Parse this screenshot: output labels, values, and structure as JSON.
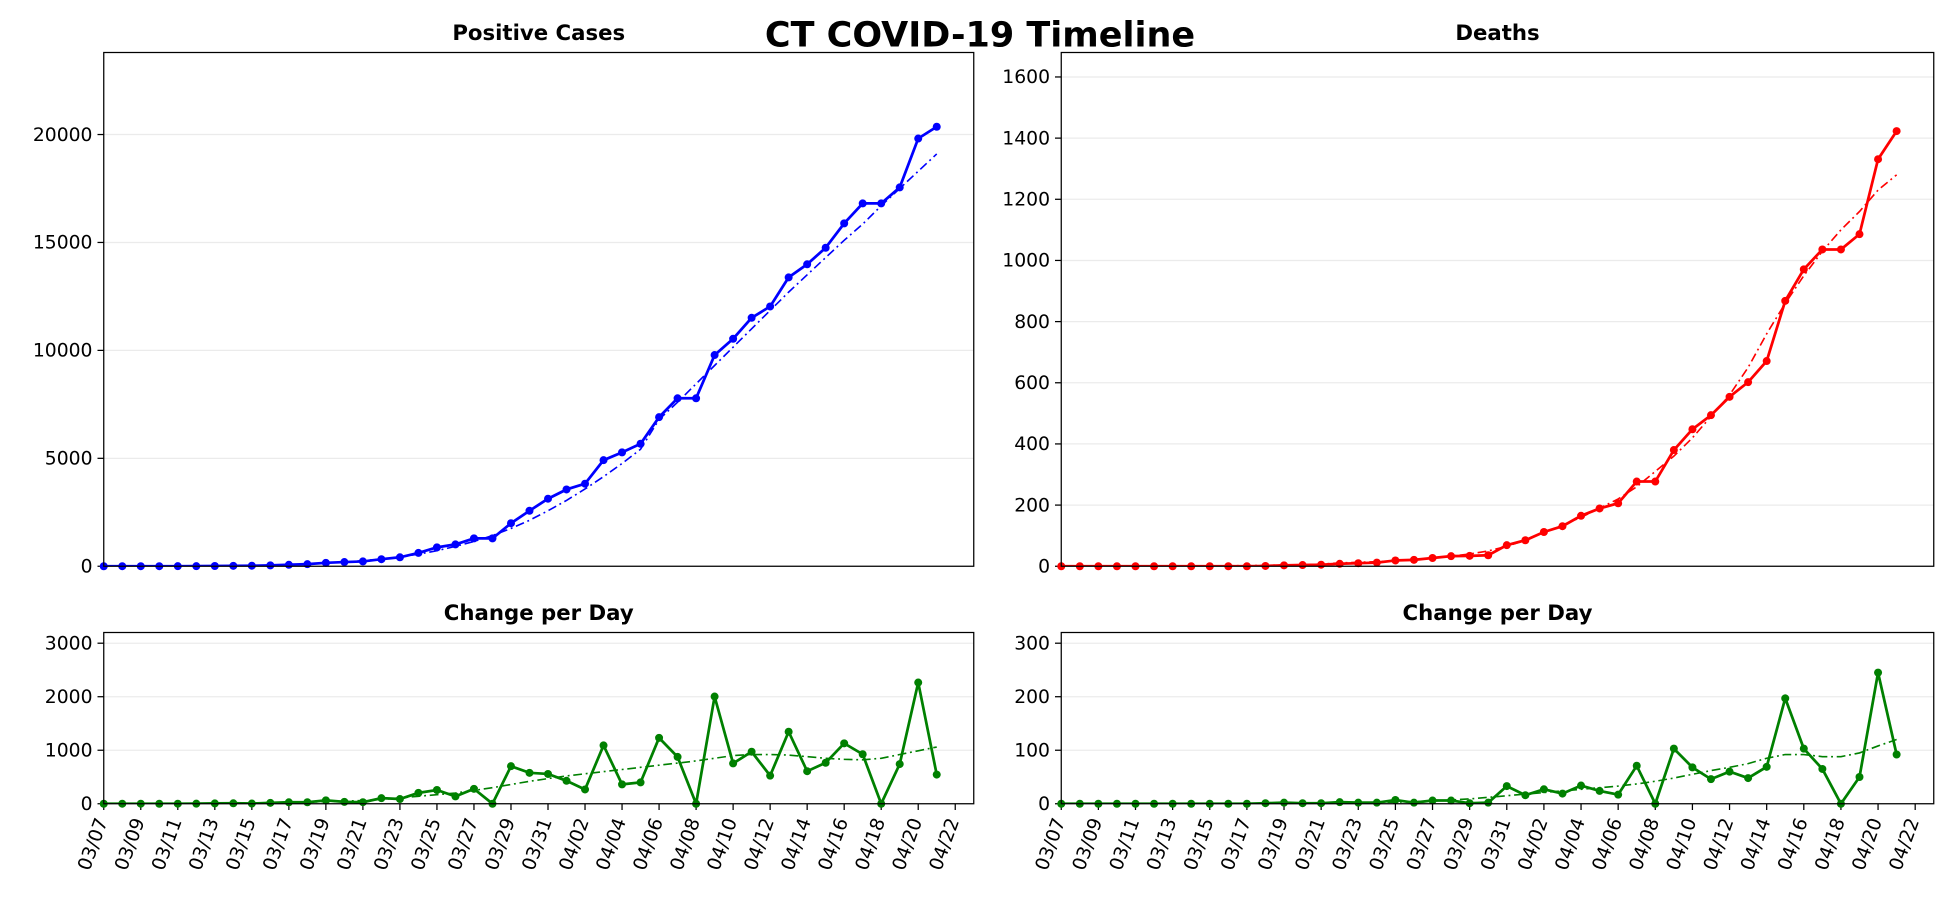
{
  "title": "CT COVID-19 Timeline",
  "chart_data": [
    {
      "type": "line",
      "title": "Positive Cases",
      "x": [
        "03/07",
        "03/08",
        "03/09",
        "03/10",
        "03/11",
        "03/12",
        "03/13",
        "03/14",
        "03/15",
        "03/16",
        "03/17",
        "03/18",
        "03/19",
        "03/20",
        "03/21",
        "03/22",
        "03/23",
        "03/24",
        "03/25",
        "03/26",
        "03/27",
        "03/28",
        "03/29",
        "03/30",
        "03/31",
        "04/01",
        "04/02",
        "04/03",
        "04/04",
        "04/05",
        "04/06",
        "04/07",
        "04/08",
        "04/09",
        "04/10",
        "04/11",
        "04/12",
        "04/13",
        "04/14",
        "04/15",
        "04/16",
        "04/17",
        "04/18",
        "04/19",
        "04/20",
        "04/21"
      ],
      "xlim": [
        "03/07",
        "04/23"
      ],
      "ylim": [
        0,
        23800
      ],
      "yticks": [
        0,
        5000,
        10000,
        15000,
        20000
      ],
      "grid": true,
      "series": [
        {
          "color": "#0000ff",
          "style": "solid-marker",
          "values": [
            0,
            1,
            2,
            2,
            3,
            5,
            11,
            20,
            24,
            41,
            68,
            96,
            159,
            194,
            223,
            327,
            415,
            618,
            875,
            1012,
            1291,
            1291,
            1993,
            2571,
            3128,
            3557,
            3824,
            4914,
            5276,
            5675,
            6906,
            7781,
            7781,
            9784,
            10538,
            11510,
            12035,
            13381,
            13989,
            14755,
            15884,
            16809,
            16809,
            17550,
            19815,
            20360
          ]
        },
        {
          "color": "#0000ff",
          "style": "dashdot",
          "values": [
            0,
            0,
            0,
            0,
            0,
            0,
            0,
            0,
            10,
            30,
            60,
            100,
            150,
            200,
            260,
            330,
            430,
            560,
            720,
            920,
            1150,
            1420,
            1750,
            2130,
            2570,
            3050,
            3580,
            4150,
            4760,
            5420,
            6800,
            7600,
            8450,
            9300,
            10150,
            11000,
            11850,
            12700,
            13500,
            14300,
            15100,
            15850,
            16700,
            17500,
            18300,
            19100
          ]
        }
      ]
    },
    {
      "type": "line",
      "title": "Deaths",
      "x": [
        "03/07",
        "03/08",
        "03/09",
        "03/10",
        "03/11",
        "03/12",
        "03/13",
        "03/14",
        "03/15",
        "03/16",
        "03/17",
        "03/18",
        "03/19",
        "03/20",
        "03/21",
        "03/22",
        "03/23",
        "03/24",
        "03/25",
        "03/26",
        "03/27",
        "03/28",
        "03/29",
        "03/30",
        "03/31",
        "04/01",
        "04/02",
        "04/03",
        "04/04",
        "04/05",
        "04/06",
        "04/07",
        "04/08",
        "04/09",
        "04/10",
        "04/11",
        "04/12",
        "04/13",
        "04/14",
        "04/15",
        "04/16",
        "04/17",
        "04/18",
        "04/19",
        "04/20",
        "04/21"
      ],
      "xlim": [
        "03/07",
        "04/23"
      ],
      "ylim": [
        0,
        1680
      ],
      "yticks": [
        0,
        200,
        400,
        600,
        800,
        1000,
        1200,
        1400,
        1600
      ],
      "grid": true,
      "series": [
        {
          "color": "#ff0000",
          "style": "solid-marker",
          "values": [
            0,
            0,
            0,
            0,
            0,
            0,
            0,
            0,
            0,
            0,
            0,
            1,
            3,
            4,
            5,
            8,
            10,
            12,
            19,
            21,
            27,
            33,
            34,
            36,
            69,
            85,
            112,
            131,
            165,
            189,
            206,
            277,
            277,
            380,
            448,
            494,
            554,
            602,
            671,
            868,
            971,
            1036,
            1036,
            1086,
            1331,
            1423
          ]
        },
        {
          "color": "#ff0000",
          "style": "dashdot",
          "values": [
            0,
            0,
            0,
            0,
            0,
            0,
            0,
            1,
            1,
            2,
            2,
            3,
            4,
            5,
            7,
            11,
            13,
            15,
            18,
            22,
            27,
            33,
            40,
            50,
            65,
            85,
            110,
            135,
            160,
            190,
            220,
            260,
            310,
            360,
            420,
            490,
            560,
            650,
            760,
            860,
            950,
            1030,
            1100,
            1160,
            1230,
            1280
          ]
        }
      ]
    },
    {
      "type": "line",
      "title": "Change per Day",
      "x": [
        "03/07",
        "03/08",
        "03/09",
        "03/10",
        "03/11",
        "03/12",
        "03/13",
        "03/14",
        "03/15",
        "03/16",
        "03/17",
        "03/18",
        "03/19",
        "03/20",
        "03/21",
        "03/22",
        "03/23",
        "03/24",
        "03/25",
        "03/26",
        "03/27",
        "03/28",
        "03/29",
        "03/30",
        "03/31",
        "04/01",
        "04/02",
        "04/03",
        "04/04",
        "04/05",
        "04/06",
        "04/07",
        "04/08",
        "04/09",
        "04/10",
        "04/11",
        "04/12",
        "04/13",
        "04/14",
        "04/15",
        "04/16",
        "04/17",
        "04/18",
        "04/19",
        "04/20",
        "04/21"
      ],
      "xlim": [
        "03/07",
        "04/23"
      ],
      "xticks": [
        "03/07",
        "03/09",
        "03/11",
        "03/13",
        "03/15",
        "03/17",
        "03/19",
        "03/21",
        "03/23",
        "03/25",
        "03/27",
        "03/29",
        "03/31",
        "04/02",
        "04/04",
        "04/06",
        "04/08",
        "04/10",
        "04/12",
        "04/14",
        "04/16",
        "04/18",
        "04/20",
        "04/22"
      ],
      "ylim": [
        0,
        3200
      ],
      "yticks": [
        0,
        1000,
        2000,
        3000
      ],
      "grid": true,
      "series": [
        {
          "color": "#008000",
          "style": "solid-marker",
          "values": [
            0,
            1,
            1,
            0,
            1,
            2,
            6,
            9,
            4,
            17,
            27,
            28,
            63,
            35,
            29,
            104,
            88,
            203,
            257,
            137,
            279,
            0,
            702,
            578,
            557,
            429,
            267,
            1090,
            362,
            399,
            1231,
            875,
            0,
            2003,
            754,
            972,
            525,
            1346,
            608,
            766,
            1129,
            925,
            0,
            741,
            2265,
            545
          ]
        },
        {
          "color": "#008000",
          "style": "dashdot",
          "values": [
            0,
            0,
            0,
            0,
            0,
            0,
            5,
            10,
            15,
            20,
            25,
            30,
            40,
            50,
            60,
            80,
            110,
            140,
            170,
            200,
            250,
            300,
            360,
            420,
            470,
            520,
            560,
            600,
            640,
            680,
            720,
            760,
            800,
            850,
            900,
            920,
            920,
            910,
            880,
            850,
            830,
            820,
            850,
            920,
            990,
            1060
          ]
        }
      ]
    },
    {
      "type": "line",
      "title": "Change per Day",
      "x": [
        "03/07",
        "03/08",
        "03/09",
        "03/10",
        "03/11",
        "03/12",
        "03/13",
        "03/14",
        "03/15",
        "03/16",
        "03/17",
        "03/18",
        "03/19",
        "03/20",
        "03/21",
        "03/22",
        "03/23",
        "03/24",
        "03/25",
        "03/26",
        "03/27",
        "03/28",
        "03/29",
        "03/30",
        "03/31",
        "04/01",
        "04/02",
        "04/03",
        "04/04",
        "04/05",
        "04/06",
        "04/07",
        "04/08",
        "04/09",
        "04/10",
        "04/11",
        "04/12",
        "04/13",
        "04/14",
        "04/15",
        "04/16",
        "04/17",
        "04/18",
        "04/19",
        "04/20",
        "04/21"
      ],
      "xlim": [
        "03/07",
        "04/23"
      ],
      "xticks": [
        "03/07",
        "03/09",
        "03/11",
        "03/13",
        "03/15",
        "03/17",
        "03/19",
        "03/21",
        "03/23",
        "03/25",
        "03/27",
        "03/29",
        "03/31",
        "04/02",
        "04/04",
        "04/06",
        "04/08",
        "04/10",
        "04/12",
        "04/14",
        "04/16",
        "04/18",
        "04/20",
        "04/22"
      ],
      "ylim": [
        0,
        320
      ],
      "yticks": [
        0,
        100,
        200,
        300
      ],
      "grid": true,
      "series": [
        {
          "color": "#008000",
          "style": "solid-marker",
          "values": [
            0,
            0,
            0,
            0,
            0,
            0,
            0,
            0,
            0,
            0,
            0,
            1,
            2,
            1,
            1,
            3,
            2,
            2,
            7,
            2,
            6,
            6,
            1,
            2,
            33,
            16,
            27,
            19,
            34,
            24,
            17,
            71,
            0,
            103,
            68,
            46,
            60,
            48,
            69,
            197,
            103,
            65,
            0,
            50,
            245,
            92
          ]
        },
        {
          "color": "#008000",
          "style": "dashdot",
          "values": [
            0,
            0,
            0,
            0,
            0,
            0,
            0,
            0,
            0,
            0,
            0,
            0,
            1,
            1,
            1,
            2,
            2,
            3,
            3,
            4,
            5,
            7,
            9,
            12,
            15,
            18,
            21,
            24,
            27,
            30,
            33,
            37,
            42,
            48,
            55,
            62,
            68,
            75,
            85,
            92,
            92,
            88,
            88,
            95,
            108,
            120
          ]
        }
      ]
    }
  ]
}
